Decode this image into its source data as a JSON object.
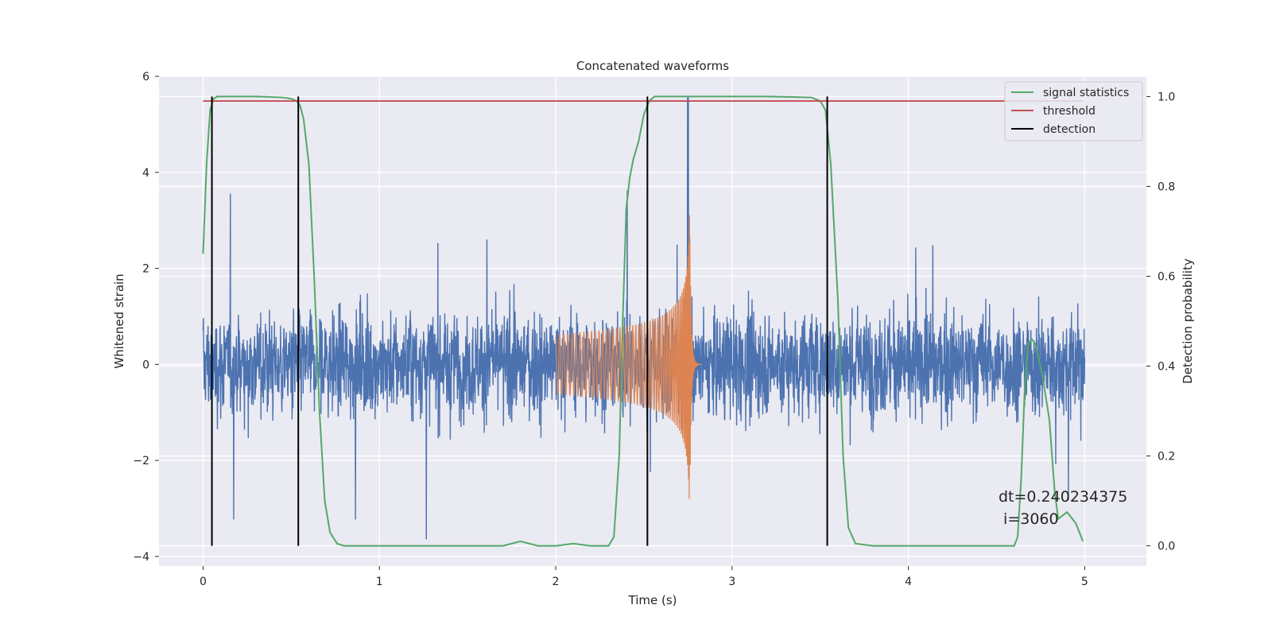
{
  "chart_data": {
    "type": "line",
    "title": "Concatenated waveforms",
    "xlabel": "Time (s)",
    "ylabel": "Whitened strain",
    "y2label": "Detection probability",
    "xlim": [
      -0.25,
      5.35
    ],
    "ylim": [
      -4.2,
      6.0
    ],
    "y2lim": [
      -0.045,
      1.045
    ],
    "xticks": [
      0,
      1,
      2,
      3,
      4,
      5
    ],
    "yticks": [
      -4,
      -2,
      0,
      2,
      4,
      6
    ],
    "y2ticks": [
      0.0,
      0.2,
      0.4,
      0.6,
      0.8,
      1.0
    ],
    "xtick_labels": [
      "0",
      "1",
      "2",
      "3",
      "4",
      "5"
    ],
    "ytick_labels": [
      "−4",
      "−2",
      "0",
      "2",
      "4",
      "6"
    ],
    "y2tick_labels": [
      "0.0",
      "0.2",
      "0.4",
      "0.6",
      "0.8",
      "1.0"
    ],
    "grid": true,
    "legend_position": "top-right",
    "legend": [
      {
        "label": "signal statistics",
        "color": "#55a868"
      },
      {
        "label": "threshold",
        "color": "#c44e52"
      },
      {
        "label": "detection",
        "color": "#000000"
      }
    ],
    "annotation": {
      "line1": "dt=0.240234375",
      "line2": " i=3060"
    },
    "series": [
      {
        "name": "",
        "axis": "left",
        "color": "#4c72b0",
        "kind": "noise",
        "x_range": [
          0,
          5
        ],
        "amplitude_envelope": [
          -3.7,
          5.6
        ]
      },
      {
        "name": "",
        "axis": "left",
        "color": "#dd8452",
        "kind": "chirp",
        "x_range": [
          2.0,
          2.83
        ],
        "peak_x": 2.76,
        "y_range": [
          -3.15,
          3.4
        ]
      },
      {
        "name": "signal statistics",
        "axis": "right",
        "color": "#55a868",
        "x": [
          0,
          0.02,
          0.04,
          0.06,
          0.08,
          0.1,
          0.15,
          0.3,
          0.45,
          0.5,
          0.53,
          0.55,
          0.57,
          0.6,
          0.63,
          0.66,
          0.69,
          0.72,
          0.76,
          0.8,
          1.0,
          1.7,
          1.8,
          1.9,
          2.0,
          2.1,
          2.2,
          2.3,
          2.33,
          2.36,
          2.38,
          2.4,
          2.42,
          2.44,
          2.47,
          2.5,
          2.53,
          2.56,
          2.6,
          2.9,
          3.2,
          3.45,
          3.5,
          3.53,
          3.56,
          3.6,
          3.63,
          3.66,
          3.7,
          3.8,
          4.0,
          4.6,
          4.62,
          4.64,
          4.66,
          4.68,
          4.7,
          4.72,
          4.76,
          4.8,
          4.83,
          4.85,
          4.9,
          4.95,
          4.99
        ],
        "y": [
          0.65,
          0.85,
          0.97,
          0.995,
          1.0,
          1.0,
          1.0,
          1.0,
          0.998,
          0.995,
          0.99,
          0.98,
          0.95,
          0.85,
          0.6,
          0.3,
          0.1,
          0.03,
          0.005,
          0.0,
          0.0,
          0.0,
          0.01,
          0.0,
          0.0,
          0.005,
          0.0,
          0.0,
          0.02,
          0.2,
          0.5,
          0.75,
          0.82,
          0.86,
          0.9,
          0.96,
          0.99,
          1.0,
          1.0,
          1.0,
          1.0,
          0.998,
          0.99,
          0.97,
          0.85,
          0.55,
          0.2,
          0.04,
          0.005,
          0.0,
          0.0,
          0.0,
          0.02,
          0.15,
          0.35,
          0.45,
          0.46,
          0.45,
          0.38,
          0.28,
          0.12,
          0.06,
          0.075,
          0.05,
          0.01
        ]
      },
      {
        "name": "threshold",
        "axis": "right",
        "color": "#c44e52",
        "x": [
          0,
          4.99
        ],
        "y": [
          0.99,
          0.99
        ]
      },
      {
        "name": "detection",
        "axis": "right",
        "color": "#000000",
        "kind": "vlines",
        "x": [
          0.05,
          0.54,
          2.52,
          3.54
        ],
        "y_range": [
          0.0,
          1.0
        ]
      }
    ]
  }
}
